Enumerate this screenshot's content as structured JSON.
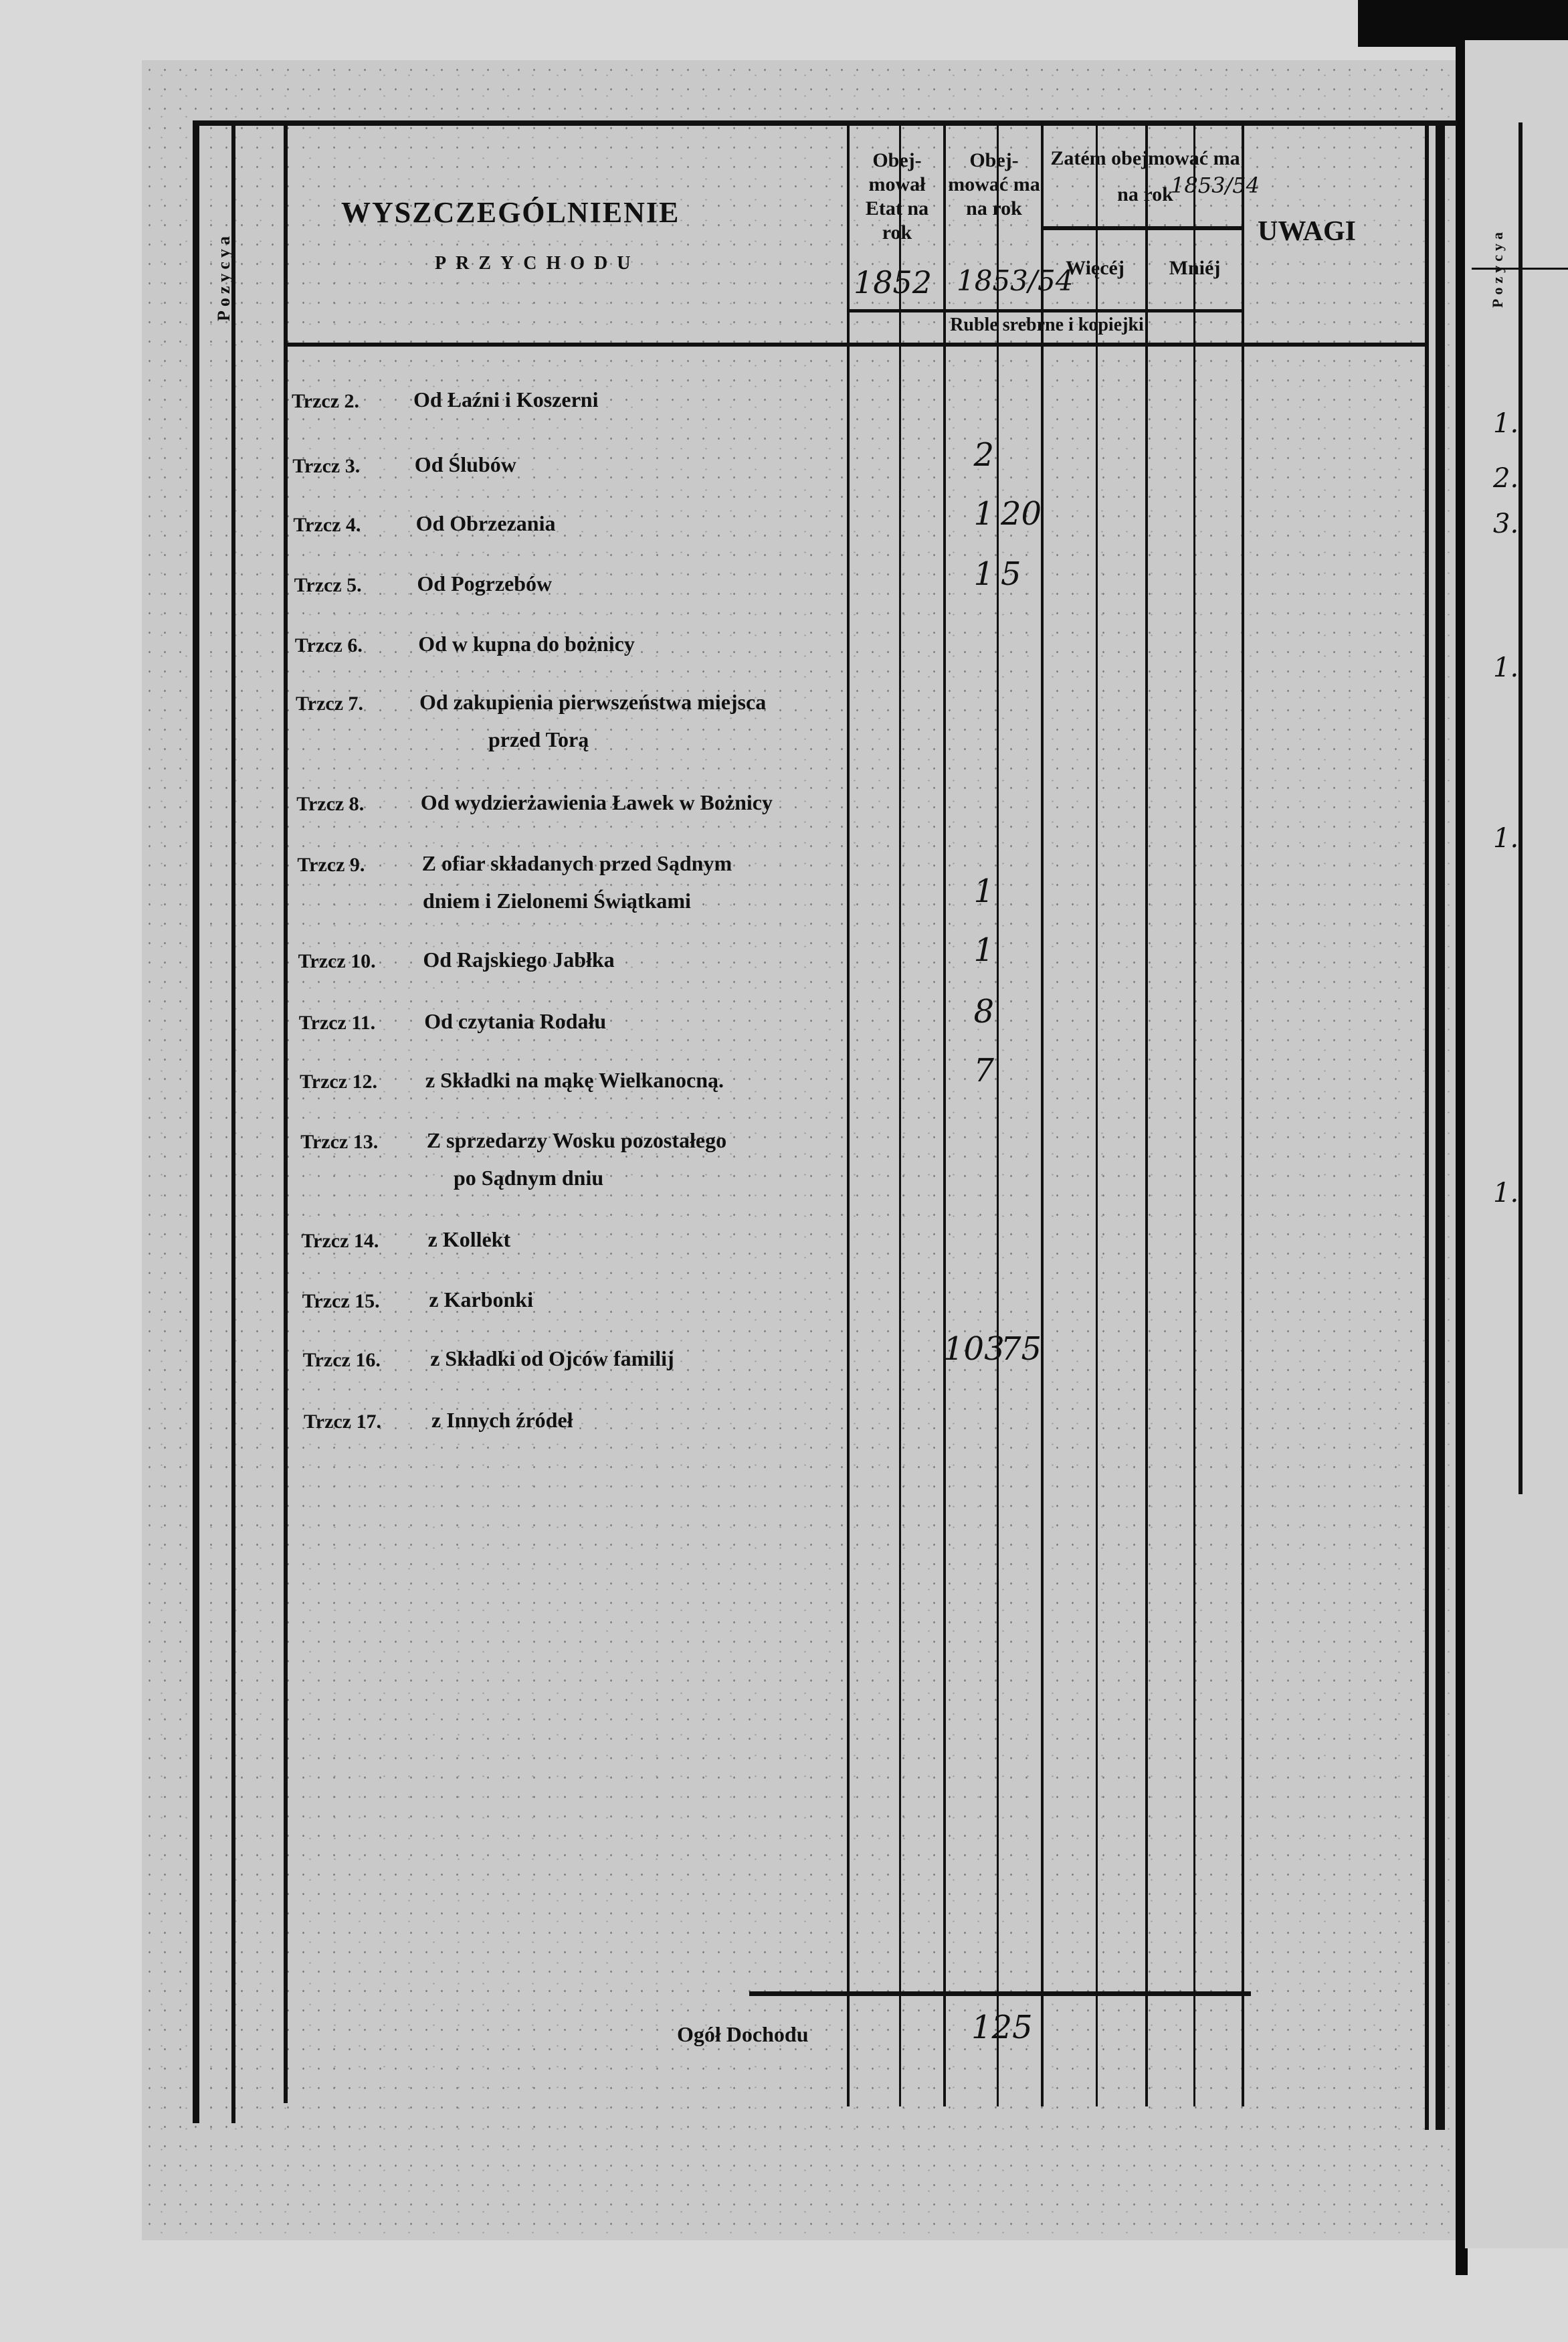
{
  "header": {
    "position_label": "Pozycya",
    "title": "WYSZCZEGÓLNIENIE",
    "subtitle": "PRZYCHODU",
    "col_budget_prev": "Obej- mował Etat na rok",
    "col_budget_prev_year": "1852",
    "col_budget_next": "Obej- mować ma na rok",
    "col_budget_next_year": "1853/54",
    "col_therefore": "Zatém obejmować ma na rok",
    "col_therefore_year": "1853/54",
    "col_more": "Więcéj",
    "col_less": "Mniéj",
    "col_currency": "Ruble srebrne i kopiejki",
    "col_remarks": "UWAGI"
  },
  "rows": [
    {
      "num": "Trzcz 2.",
      "label": "Od Łaźni i Koszerni",
      "label2": "",
      "rubles": "",
      "kop": ""
    },
    {
      "num": "Trzcz 3.",
      "label": "Od Ślubów",
      "label2": "",
      "rubles": "2",
      "kop": ""
    },
    {
      "num": "Trzcz 4.",
      "label": "Od Obrzezania",
      "label2": "",
      "rubles": "1",
      "kop": "20"
    },
    {
      "num": "Trzcz 5.",
      "label": "Od Pogrzebów",
      "label2": "",
      "rubles": "1",
      "kop": "5"
    },
    {
      "num": "Trzcz 6.",
      "label": "Od w kupna do bożnicy",
      "label2": "",
      "rubles": "",
      "kop": ""
    },
    {
      "num": "Trzcz 7.",
      "label": "Od zakupienia pierwszeństwa miejsca",
      "label2": "przed Torą",
      "rubles": "",
      "kop": ""
    },
    {
      "num": "Trzcz 8.",
      "label": "Od wydzierżawienia Ławek w Bożnicy",
      "label2": "",
      "rubles": "",
      "kop": ""
    },
    {
      "num": "Trzcz 9.",
      "label": "Z ofiar składanych przed Sądnym",
      "label2": "dniem i Zielonemi Świątkami",
      "rubles": "1",
      "kop": ""
    },
    {
      "num": "Trzcz 10.",
      "label": "Od Rajskiego Jabłka",
      "label2": "",
      "rubles": "1",
      "kop": ""
    },
    {
      "num": "Trzcz 11.",
      "label": "Od czytania Rodału",
      "label2": "",
      "rubles": "8",
      "kop": ""
    },
    {
      "num": "Trzcz 12.",
      "label": "z Składki na mąkę Wielkanocną.",
      "label2": "",
      "rubles": "7",
      "kop": ""
    },
    {
      "num": "Trzcz 13.",
      "label": "Z sprzedarzy Wosku pozostałego",
      "label2": "po Sądnym dniu",
      "rubles": "",
      "kop": ""
    },
    {
      "num": "Trzcz 14.",
      "label": "z Kollekt",
      "label2": "",
      "rubles": "",
      "kop": ""
    },
    {
      "num": "Trzcz 15.",
      "label": "z Karbonki",
      "label2": "",
      "rubles": "",
      "kop": ""
    },
    {
      "num": "Trzcz 16.",
      "label": "z Składki od Ojców familij",
      "label2": "",
      "rubles": "103",
      "kop": "75"
    },
    {
      "num": "Trzcz 17.",
      "label": "z Innych źródeł",
      "label2": "",
      "rubles": "",
      "kop": ""
    }
  ],
  "total": {
    "label": "Ogół Dochodu",
    "rubles": "125",
    "kop": ""
  },
  "next_page": {
    "position_label": "Pozycya",
    "entries": [
      "1.",
      "2.",
      "3.",
      "1.",
      "1.",
      "1."
    ]
  }
}
